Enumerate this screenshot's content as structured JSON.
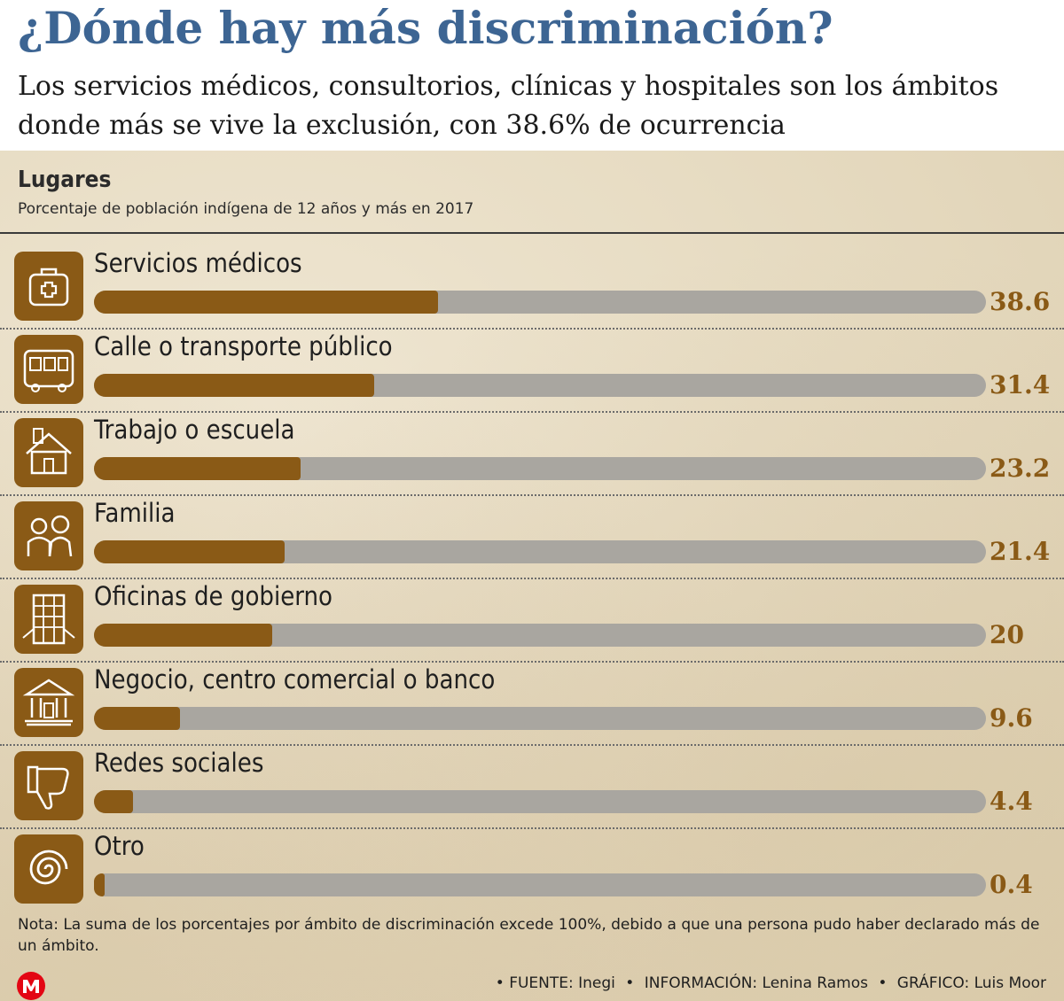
{
  "header": {
    "title": "¿Dónde hay más discriminación?",
    "subtitle": "Los servicios médicos, consultorios, clínicas y hospitales son los ámbitos donde más se vive la exclusión, con 38.6% de ocurrencia"
  },
  "chart_data": {
    "type": "bar",
    "title": "Lugares",
    "subtitle": "Porcentaje de población indígena de 12 años y más en 2017",
    "categories": [
      "Servicios médicos",
      "Calle o transporte público",
      "Trabajo o escuela",
      "Familia",
      "Oficinas de gobierno",
      "Negocio, centro comercial o banco",
      "Redes sociales",
      "Otro"
    ],
    "values": [
      38.6,
      31.4,
      23.2,
      21.4,
      20,
      9.6,
      4.4,
      0.4
    ],
    "value_labels": [
      "38.6",
      "31.4",
      "23.2",
      "21.4",
      "20",
      "9.6",
      "4.4",
      "0.4"
    ],
    "icons": [
      "medical-kit-icon",
      "bus-icon",
      "house-icon",
      "family-icon",
      "government-building-icon",
      "bank-icon",
      "thumbs-down-icon",
      "spiral-icon"
    ],
    "xlim": [
      0,
      100
    ],
    "grid": false,
    "legend": "none",
    "colors": {
      "fill": "#8a5a16",
      "track": "#a9a6a0",
      "value_text": "#8a5a16"
    }
  },
  "note": "Nota: La suma de los porcentajes por ámbito de discriminación excede 100%, debido a que una persona pudo haber declarado más de un ámbito.",
  "footer": {
    "fuente": "FUENTE: Inegi",
    "informacion": "INFORMACIÓN: Lenina Ramos",
    "grafico": "GRÁFICO: Luis Moor",
    "bullet": "•"
  },
  "colors": {
    "title": "#3d6593",
    "logo": "#e30613"
  }
}
